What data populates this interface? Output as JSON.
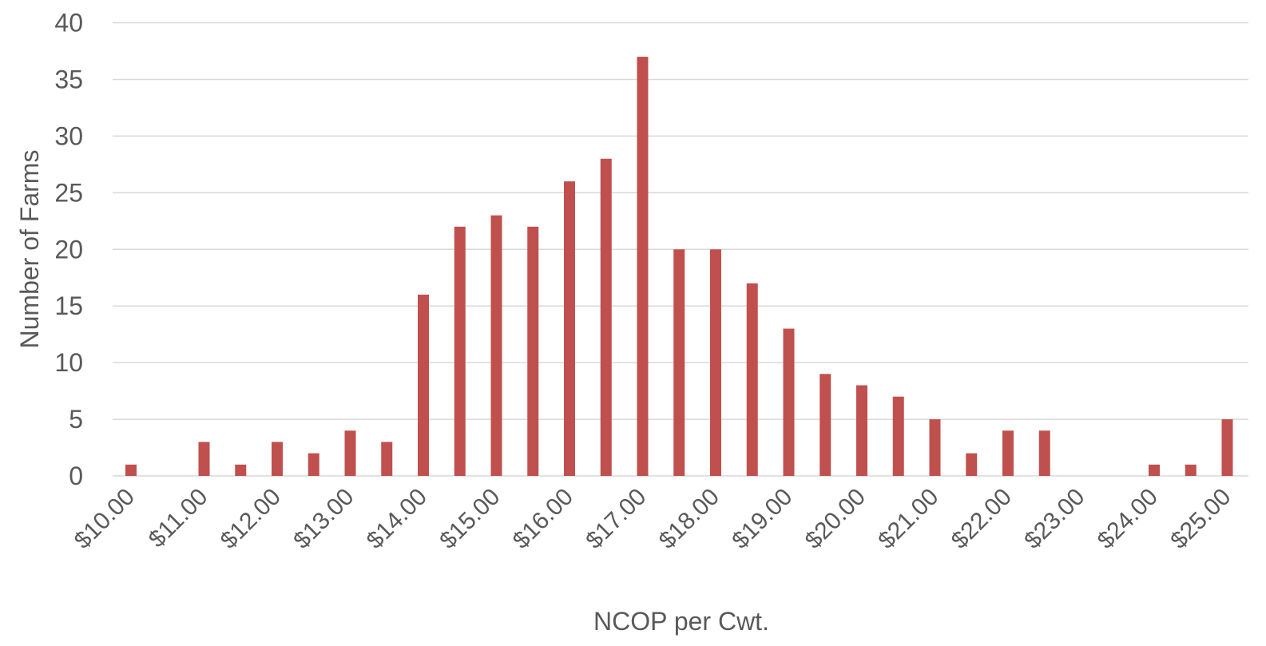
{
  "chart_data": {
    "type": "bar",
    "title": "",
    "xlabel": "NCOP per Cwt.",
    "ylabel": "Number of Farms",
    "ylim": [
      0,
      40
    ],
    "yticks": [
      0,
      5,
      10,
      15,
      20,
      25,
      30,
      35,
      40
    ],
    "grid": true,
    "legend": "none",
    "bar_color": "#c0504d",
    "grid_color": "#d9d9d9",
    "text_color": "#595959",
    "categories": [
      "$10.00",
      "$10.50",
      "$11.00",
      "$11.50",
      "$12.00",
      "$12.50",
      "$13.00",
      "$13.50",
      "$14.00",
      "$14.50",
      "$15.00",
      "$15.50",
      "$16.00",
      "$16.50",
      "$17.00",
      "$17.50",
      "$18.00",
      "$18.50",
      "$19.00",
      "$19.50",
      "$20.00",
      "$20.50",
      "$21.00",
      "$21.50",
      "$22.00",
      "$22.50",
      "$23.00",
      "$23.50",
      "$24.00",
      "$24.50",
      "$25.00"
    ],
    "tick_labels": [
      "$10.00",
      "$11.00",
      "$12.00",
      "$13.00",
      "$14.00",
      "$15.00",
      "$16.00",
      "$17.00",
      "$18.00",
      "$19.00",
      "$20.00",
      "$21.00",
      "$22.00",
      "$23.00",
      "$24.00",
      "$25.00"
    ],
    "values": [
      1,
      0,
      3,
      1,
      3,
      2,
      4,
      3,
      16,
      22,
      23,
      22,
      26,
      28,
      37,
      20,
      20,
      17,
      13,
      9,
      8,
      7,
      5,
      2,
      4,
      4,
      0,
      0,
      1,
      1,
      5
    ]
  }
}
